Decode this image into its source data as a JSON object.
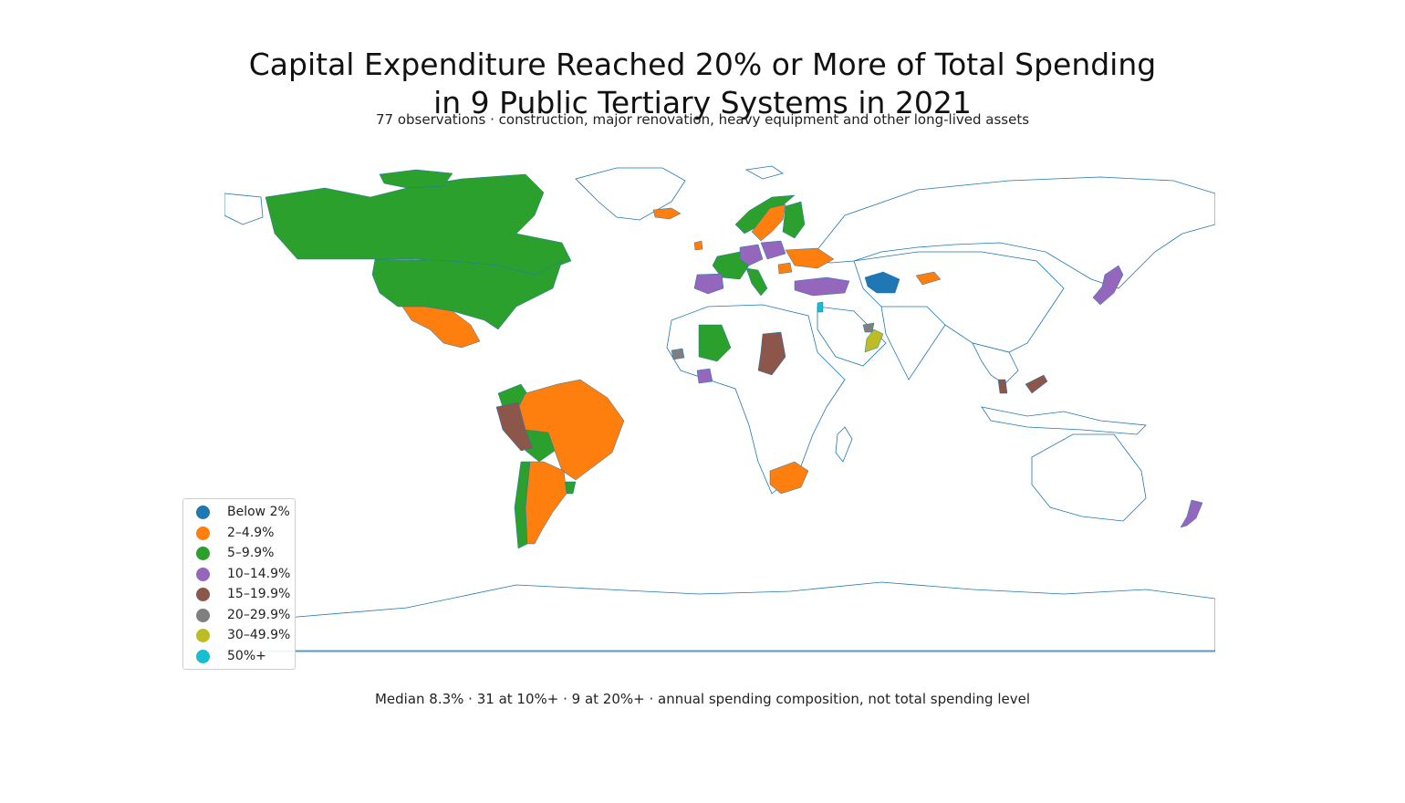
{
  "title_lines": [
    "Capital Expenditure Reached 20% or More of Total Spending",
    "in 9 Public Tertiary Systems in 2021"
  ],
  "subtitle": "77 observations · construction, major renovation, heavy equipment and other long-lived assets",
  "footnote": "Median 8.3% · 31 at 10%+ · 9 at 20%+ · annual spending composition, not total spending level",
  "legend": [
    {
      "label": "Below 2%",
      "color": "#1f77b4"
    },
    {
      "label": "2–4.9%",
      "color": "#ff7f0e"
    },
    {
      "label": "5–9.9%",
      "color": "#2ca02c"
    },
    {
      "label": "10–14.9%",
      "color": "#9467bd"
    },
    {
      "label": "15–19.9%",
      "color": "#8c564b"
    },
    {
      "label": "20–29.9%",
      "color": "#7f7f7f"
    },
    {
      "label": "30–49.9%",
      "color": "#bcbd22"
    },
    {
      "label": "50%+",
      "color": "#17becf"
    }
  ],
  "outline_color": "#1f77b4",
  "chart_data": {
    "type": "choropleth",
    "bins": [
      "Below 2%",
      "2–4.9%",
      "5–9.9%",
      "10–14.9%",
      "15–19.9%",
      "20–29.9%",
      "30–49.9%",
      "50%+"
    ],
    "regions": [
      {
        "name": "Canada",
        "bin": "5–9.9%"
      },
      {
        "name": "United States",
        "bin": "5–9.9%"
      },
      {
        "name": "Mexico",
        "bin": "2–4.9%"
      },
      {
        "name": "Colombia",
        "bin": "5–9.9%"
      },
      {
        "name": "Peru",
        "bin": "15–19.9%"
      },
      {
        "name": "Brazil",
        "bin": "2–4.9%"
      },
      {
        "name": "Bolivia",
        "bin": "5–9.9%"
      },
      {
        "name": "Chile",
        "bin": "5–9.9%"
      },
      {
        "name": "Argentina",
        "bin": "2–4.9%"
      },
      {
        "name": "Uruguay",
        "bin": "5–9.9%"
      },
      {
        "name": "Iceland",
        "bin": "2–4.9%"
      },
      {
        "name": "Ireland",
        "bin": "2–4.9%"
      },
      {
        "name": "Norway",
        "bin": "5–9.9%"
      },
      {
        "name": "Sweden",
        "bin": "2–4.9%"
      },
      {
        "name": "Finland",
        "bin": "5–9.9%"
      },
      {
        "name": "Spain",
        "bin": "10–14.9%"
      },
      {
        "name": "France",
        "bin": "5–9.9%"
      },
      {
        "name": "Germany",
        "bin": "10–14.9%"
      },
      {
        "name": "Poland",
        "bin": "10–14.9%"
      },
      {
        "name": "Italy",
        "bin": "5–9.9%"
      },
      {
        "name": "Ukraine",
        "bin": "2–4.9%"
      },
      {
        "name": "Romania",
        "bin": "2–4.9%"
      },
      {
        "name": "Turkey",
        "bin": "10–14.9%"
      },
      {
        "name": "Israel",
        "bin": "50%+"
      },
      {
        "name": "Oman",
        "bin": "30–49.9%"
      },
      {
        "name": "UAE",
        "bin": "20–29.9%"
      },
      {
        "name": "Turkmenistan",
        "bin": "Below 2%"
      },
      {
        "name": "Kyrgyzstan",
        "bin": "2–4.9%"
      },
      {
        "name": "Mali",
        "bin": "5–9.9%"
      },
      {
        "name": "Senegal",
        "bin": "20–29.9%"
      },
      {
        "name": "Côte d'Ivoire",
        "bin": "10–14.9%"
      },
      {
        "name": "Chad",
        "bin": "15–19.9%"
      },
      {
        "name": "South Africa",
        "bin": "2–4.9%"
      },
      {
        "name": "Japan",
        "bin": "10–14.9%"
      },
      {
        "name": "Malaysia",
        "bin": "15–19.9%"
      },
      {
        "name": "New Zealand",
        "bin": "10–14.9%"
      }
    ]
  }
}
